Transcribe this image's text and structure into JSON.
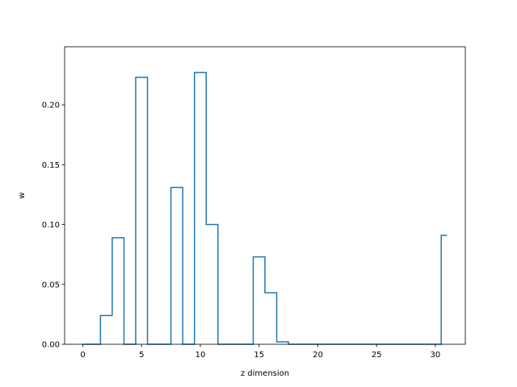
{
  "chart_data": {
    "type": "line",
    "drawstyle": "steps-mid",
    "title": "",
    "xlabel": "z dimension",
    "ylabel": "w",
    "xlim": [
      -1.55,
      32.55
    ],
    "ylim": [
      0,
      0.2485
    ],
    "grid": false,
    "x_ticks": [
      0,
      5,
      10,
      15,
      20,
      25,
      30
    ],
    "x_tick_labels": [
      "0",
      "5",
      "10",
      "15",
      "20",
      "25",
      "30"
    ],
    "y_ticks": [
      0.0,
      0.05,
      0.1,
      0.15,
      0.2
    ],
    "y_tick_labels": [
      "0.00",
      "0.05",
      "0.10",
      "0.15",
      "0.20"
    ],
    "series": [
      {
        "color": "#1f77b4",
        "x": [
          0,
          1,
          2,
          3,
          4,
          5,
          6,
          7,
          8,
          9,
          10,
          11,
          12,
          13,
          14,
          15,
          16,
          17,
          18,
          19,
          20,
          21,
          22,
          23,
          24,
          25,
          26,
          27,
          28,
          29,
          30,
          31
        ],
        "y": [
          0,
          0,
          0.024,
          0.089,
          0,
          0.223,
          0,
          0,
          0.131,
          0,
          0.227,
          0.1,
          0,
          0,
          0,
          0.073,
          0.043,
          0.002,
          0,
          0,
          0,
          0,
          0,
          0,
          0,
          0,
          0,
          0,
          0,
          0,
          0,
          0.091
        ]
      }
    ]
  }
}
